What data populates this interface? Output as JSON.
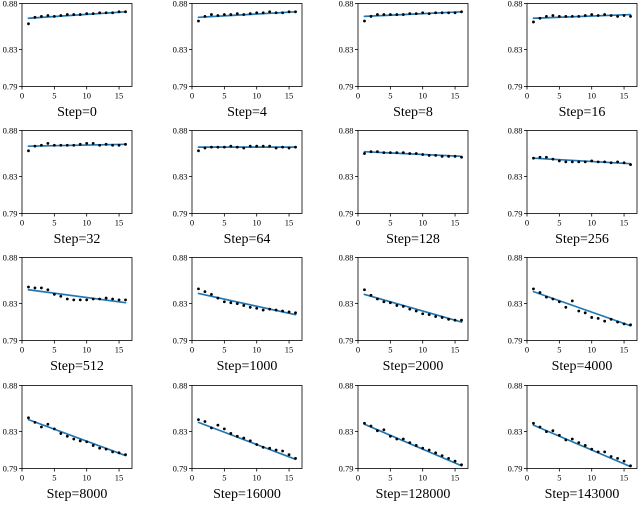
{
  "figure": {
    "background": "#ffffff",
    "grid": {
      "rows": 4,
      "cols": 4
    }
  },
  "chart_common": {
    "type": "scatter",
    "x": [
      1,
      2,
      3,
      4,
      5,
      6,
      7,
      8,
      9,
      10,
      11,
      12,
      13,
      14,
      15,
      16
    ],
    "xlim": [
      0,
      17
    ],
    "ylim": [
      0.79,
      0.88
    ],
    "ytick_labels": [
      "0.88",
      "0.83",
      "0.79"
    ],
    "ytick_values": [
      0.88,
      0.83,
      0.79
    ],
    "xtick_labels": [
      "0",
      "5",
      "10",
      "15"
    ],
    "xtick_values": [
      0,
      5,
      10,
      15
    ],
    "grid_lines": false,
    "legend": "none",
    "dot_color": "#000000",
    "line_color": "#1f77b4",
    "axis_color": "#000000"
  },
  "chart_data": [
    {
      "type": "scatter+line",
      "title": "Step=0",
      "points": [
        0.858,
        0.865,
        0.866,
        0.867,
        0.866,
        0.867,
        0.868,
        0.868,
        0.868,
        0.869,
        0.869,
        0.87,
        0.87,
        0.87,
        0.871,
        0.871
      ],
      "fit_line": {
        "x": [
          1,
          16
        ],
        "y": [
          0.864,
          0.871
        ]
      }
    },
    {
      "type": "scatter+line",
      "title": "Step=4",
      "points": [
        0.861,
        0.866,
        0.868,
        0.867,
        0.868,
        0.868,
        0.869,
        0.868,
        0.869,
        0.87,
        0.87,
        0.871,
        0.87,
        0.87,
        0.871,
        0.871
      ],
      "fit_line": {
        "x": [
          1,
          16
        ],
        "y": [
          0.865,
          0.871
        ]
      }
    },
    {
      "type": "scatter+line",
      "title": "Step=8",
      "points": [
        0.861,
        0.866,
        0.868,
        0.868,
        0.868,
        0.868,
        0.868,
        0.869,
        0.869,
        0.87,
        0.869,
        0.87,
        0.87,
        0.87,
        0.87,
        0.871
      ],
      "fit_line": {
        "x": [
          1,
          16
        ],
        "y": [
          0.866,
          0.871
        ]
      }
    },
    {
      "type": "scatter+line",
      "title": "Step=16",
      "points": [
        0.86,
        0.864,
        0.866,
        0.867,
        0.866,
        0.866,
        0.866,
        0.866,
        0.867,
        0.868,
        0.867,
        0.868,
        0.867,
        0.866,
        0.867,
        0.866
      ],
      "fit_line": {
        "x": [
          1,
          16
        ],
        "y": [
          0.864,
          0.868
        ]
      }
    },
    {
      "type": "scatter+line",
      "title": "Step=32",
      "points": [
        0.858,
        0.863,
        0.864,
        0.866,
        0.864,
        0.864,
        0.864,
        0.864,
        0.865,
        0.866,
        0.866,
        0.864,
        0.865,
        0.864,
        0.864,
        0.865
      ],
      "fit_line": {
        "x": [
          1,
          16
        ],
        "y": [
          0.863,
          0.865
        ]
      }
    },
    {
      "type": "scatter+line",
      "title": "Step=64",
      "points": [
        0.858,
        0.861,
        0.862,
        0.862,
        0.862,
        0.863,
        0.862,
        0.861,
        0.863,
        0.863,
        0.863,
        0.863,
        0.861,
        0.862,
        0.861,
        0.862
      ],
      "fit_line": {
        "x": [
          1,
          16
        ],
        "y": [
          0.862,
          0.862
        ]
      }
    },
    {
      "type": "scatter+line",
      "title": "Step=128",
      "points": [
        0.855,
        0.857,
        0.857,
        0.856,
        0.856,
        0.856,
        0.856,
        0.855,
        0.855,
        0.854,
        0.853,
        0.853,
        0.852,
        0.852,
        0.852,
        0.851
      ],
      "fit_line": {
        "x": [
          1,
          16
        ],
        "y": [
          0.857,
          0.852
        ]
      }
    },
    {
      "type": "scatter+line",
      "title": "Step=256",
      "points": [
        0.85,
        0.851,
        0.851,
        0.849,
        0.847,
        0.846,
        0.846,
        0.846,
        0.846,
        0.847,
        0.846,
        0.846,
        0.845,
        0.846,
        0.845,
        0.843
      ],
      "fit_line": {
        "x": [
          1,
          16
        ],
        "y": [
          0.85,
          0.844
        ]
      }
    },
    {
      "type": "scatter+line",
      "title": "Step=512",
      "points": [
        0.848,
        0.847,
        0.847,
        0.845,
        0.84,
        0.838,
        0.835,
        0.834,
        0.834,
        0.834,
        0.835,
        0.835,
        0.836,
        0.835,
        0.834,
        0.834
      ],
      "fit_line": {
        "x": [
          1,
          16
        ],
        "y": [
          0.845,
          0.831
        ]
      }
    },
    {
      "type": "scatter+line",
      "title": "Step=1000",
      "points": [
        0.846,
        0.843,
        0.84,
        0.836,
        0.832,
        0.831,
        0.83,
        0.828,
        0.826,
        0.825,
        0.823,
        0.824,
        0.823,
        0.822,
        0.821,
        0.82
      ],
      "fit_line": {
        "x": [
          1,
          16
        ],
        "y": [
          0.841,
          0.818
        ]
      }
    },
    {
      "type": "scatter+line",
      "title": "Step=2000",
      "points": [
        0.845,
        0.839,
        0.835,
        0.832,
        0.831,
        0.828,
        0.827,
        0.824,
        0.822,
        0.819,
        0.818,
        0.816,
        0.815,
        0.813,
        0.812,
        0.812
      ],
      "fit_line": {
        "x": [
          1,
          16
        ],
        "y": [
          0.84,
          0.81
        ]
      }
    },
    {
      "type": "scatter+line",
      "title": "Step=4000",
      "points": [
        0.846,
        0.842,
        0.837,
        0.835,
        0.832,
        0.826,
        0.833,
        0.822,
        0.82,
        0.815,
        0.814,
        0.811,
        0.813,
        0.81,
        0.808,
        0.807
      ],
      "fit_line": {
        "x": [
          1,
          16
        ],
        "y": [
          0.843,
          0.806
        ]
      }
    },
    {
      "type": "scatter+line",
      "title": "Step=8000",
      "points": [
        0.845,
        0.84,
        0.835,
        0.838,
        0.833,
        0.828,
        0.825,
        0.822,
        0.82,
        0.819,
        0.815,
        0.812,
        0.811,
        0.808,
        0.807,
        0.805
      ],
      "fit_line": {
        "x": [
          1,
          16
        ],
        "y": [
          0.843,
          0.804
        ]
      }
    },
    {
      "type": "scatter+line",
      "title": "Step=16000",
      "points": [
        0.843,
        0.841,
        0.834,
        0.837,
        0.833,
        0.828,
        0.825,
        0.823,
        0.82,
        0.816,
        0.813,
        0.812,
        0.81,
        0.809,
        0.805,
        0.801
      ],
      "fit_line": {
        "x": [
          1,
          16
        ],
        "y": [
          0.84,
          0.8
        ]
      }
    },
    {
      "type": "scatter+line",
      "title": "Step=128000",
      "points": [
        0.839,
        0.836,
        0.831,
        0.832,
        0.825,
        0.822,
        0.822,
        0.818,
        0.815,
        0.812,
        0.81,
        0.807,
        0.804,
        0.801,
        0.798,
        0.794
      ],
      "fit_line": {
        "x": [
          1,
          16
        ],
        "y": [
          0.838,
          0.793
        ]
      }
    },
    {
      "type": "scatter+line",
      "title": "Step=143000",
      "points": [
        0.839,
        0.835,
        0.83,
        0.831,
        0.826,
        0.821,
        0.822,
        0.818,
        0.815,
        0.811,
        0.808,
        0.808,
        0.803,
        0.801,
        0.798,
        0.793
      ],
      "fit_line": {
        "x": [
          1,
          16
        ],
        "y": [
          0.837,
          0.792
        ]
      }
    }
  ]
}
